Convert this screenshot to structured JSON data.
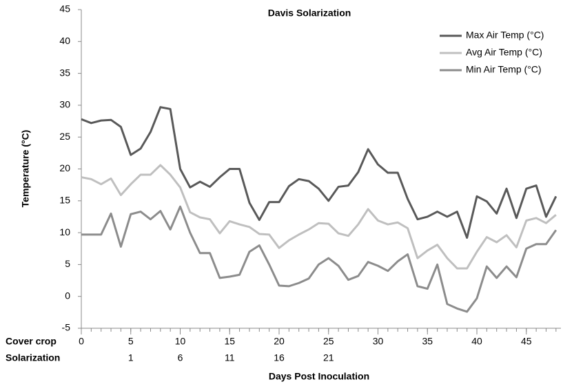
{
  "chart_data": {
    "type": "line",
    "title": "Davis Solarization",
    "ylabel": "Temperature (°C)",
    "xlabel": "Days Post Inoculation",
    "x_row_label": "Cover crop",
    "x2_row_label": "Solarization",
    "x": [
      0,
      1,
      2,
      3,
      4,
      5,
      6,
      7,
      8,
      9,
      10,
      11,
      12,
      13,
      14,
      15,
      16,
      17,
      18,
      19,
      20,
      21,
      22,
      23,
      24,
      25,
      26,
      27,
      28,
      29,
      30,
      31,
      32,
      33,
      34,
      35,
      36,
      37,
      38,
      39,
      40,
      41,
      42,
      43,
      44,
      45,
      46,
      47,
      48
    ],
    "series": [
      {
        "name": "Max Air Temp (°C)",
        "color": "#595959",
        "values": [
          27.8,
          27.2,
          27.6,
          27.7,
          26.6,
          22.2,
          23.2,
          25.8,
          29.7,
          29.4,
          20.0,
          17.1,
          18.0,
          17.2,
          18.7,
          20.0,
          20.0,
          14.7,
          12.0,
          14.8,
          14.8,
          17.3,
          18.4,
          18.1,
          16.9,
          15.0,
          17.2,
          17.4,
          19.5,
          23.1,
          20.7,
          19.4,
          19.4,
          15.3,
          12.1,
          12.5,
          13.3,
          12.5,
          13.3,
          9.2,
          15.7,
          14.9,
          13.0,
          16.9,
          12.3,
          16.9,
          17.4,
          12.5,
          15.7
        ]
      },
      {
        "name": "Avg Air Temp (°C)",
        "color": "#bfbfbf",
        "values": [
          18.7,
          18.4,
          17.6,
          18.5,
          15.9,
          17.6,
          19.1,
          19.1,
          20.6,
          19.1,
          17.1,
          13.2,
          12.4,
          12.1,
          9.9,
          11.8,
          11.3,
          10.9,
          9.8,
          9.7,
          7.6,
          8.8,
          9.7,
          10.5,
          11.5,
          11.4,
          9.9,
          9.5,
          11.3,
          13.7,
          11.9,
          11.3,
          11.6,
          10.7,
          6.0,
          7.2,
          8.1,
          6.0,
          4.4,
          4.4,
          7.0,
          9.3,
          8.5,
          9.6,
          7.7,
          11.9,
          12.3,
          11.5,
          12.8
        ]
      },
      {
        "name": "Min Air Temp (°C)",
        "color": "#8c8c8c",
        "values": [
          9.7,
          9.7,
          9.7,
          13.0,
          7.8,
          12.9,
          13.3,
          12.1,
          13.4,
          10.5,
          14.1,
          10.0,
          6.8,
          6.8,
          2.9,
          3.1,
          3.4,
          7.0,
          8.0,
          5.0,
          1.7,
          1.6,
          2.1,
          2.8,
          5.0,
          6.0,
          4.8,
          2.6,
          3.2,
          5.4,
          4.8,
          4.0,
          5.5,
          6.6,
          1.6,
          1.2,
          5.0,
          -1.2,
          -1.9,
          -2.4,
          -0.3,
          4.7,
          2.9,
          4.7,
          3.0,
          7.5,
          8.2,
          8.2,
          10.4
        ]
      }
    ],
    "xlim": [
      0,
      48.5
    ],
    "xticks": [
      0,
      5,
      10,
      15,
      20,
      25,
      30,
      35,
      40,
      45
    ],
    "minor_tick_interval": 1,
    "x2ticks": [
      {
        "value": 5,
        "label": "1"
      },
      {
        "value": 10,
        "label": "6"
      },
      {
        "value": 15,
        "label": "11"
      },
      {
        "value": 20,
        "label": "16"
      },
      {
        "value": 25,
        "label": "21"
      }
    ],
    "ylim": [
      -5,
      45
    ],
    "yticks": [
      -5,
      0,
      5,
      10,
      15,
      20,
      25,
      30,
      35,
      40,
      45
    ],
    "grid": false,
    "legend": "upper right"
  }
}
